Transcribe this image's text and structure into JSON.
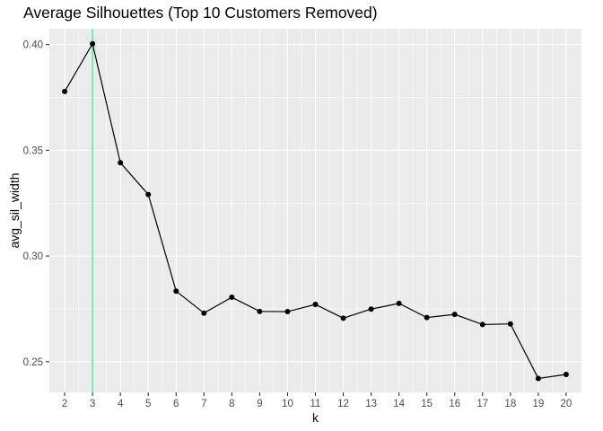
{
  "chart_data": {
    "type": "line",
    "title": "Average Silhouettes (Top 10 Customers Removed)",
    "xlabel": "k",
    "ylabel": "avg_sil_width",
    "x": [
      2,
      3,
      4,
      5,
      6,
      7,
      8,
      9,
      10,
      11,
      12,
      13,
      14,
      15,
      16,
      17,
      18,
      19,
      20
    ],
    "y": [
      0.3778,
      0.4004,
      0.3441,
      0.3291,
      0.2834,
      0.273,
      0.2805,
      0.2738,
      0.2737,
      0.2771,
      0.2706,
      0.2749,
      0.2776,
      0.2709,
      0.2724,
      0.2676,
      0.2679,
      0.2421,
      0.244
    ],
    "xlim": [
      1.45,
      20.55
    ],
    "ylim": [
      0.2355,
      0.4075
    ],
    "x_ticks": [
      "2",
      "3",
      "4",
      "5",
      "6",
      "7",
      "8",
      "9",
      "10",
      "11",
      "12",
      "13",
      "14",
      "15",
      "16",
      "17",
      "18",
      "19",
      "20"
    ],
    "y_ticks": [
      "0.25",
      "0.30",
      "0.35",
      "0.40"
    ],
    "reference_line": {
      "x": 3,
      "color": "#00ff7f"
    },
    "grid": true,
    "colors": {
      "panel": "#ebebeb",
      "grid": "#ffffff",
      "line": "#000000",
      "point": "#000000"
    }
  }
}
